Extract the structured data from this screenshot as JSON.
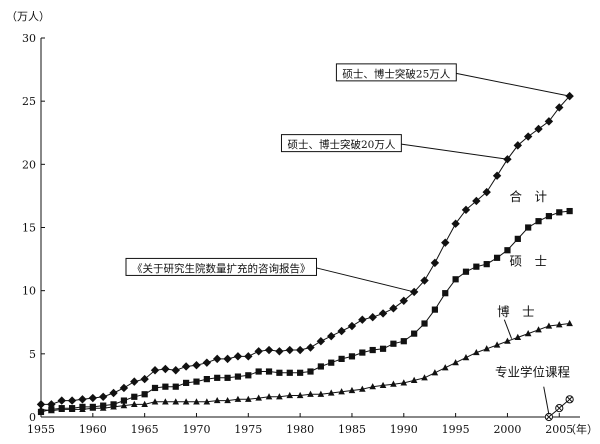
{
  "chart_data": {
    "type": "line",
    "ylabel": "（万人）",
    "xlabel": "（年）",
    "xlim": [
      1955,
      2007
    ],
    "ylim": [
      0,
      30
    ],
    "xticks": [
      1955,
      1960,
      1965,
      1970,
      1975,
      1980,
      1985,
      1990,
      1995,
      2000,
      2005
    ],
    "yticks": [
      0,
      5,
      10,
      15,
      20,
      25,
      30
    ],
    "x_tick_labels": [
      "1955",
      "1960",
      "1965",
      "1970",
      "1975",
      "1980",
      "1985",
      "1990",
      "1995",
      "2000",
      "2005"
    ],
    "y_tick_labels": [
      "0",
      "5",
      "10",
      "15",
      "20",
      "25",
      "30"
    ],
    "grid": false,
    "legend": "none",
    "series": [
      {
        "name": "合　计",
        "marker": "diamond",
        "x": [
          1955,
          1956,
          1957,
          1958,
          1959,
          1960,
          1961,
          1962,
          1963,
          1964,
          1965,
          1966,
          1967,
          1968,
          1969,
          1970,
          1971,
          1972,
          1973,
          1974,
          1975,
          1976,
          1977,
          1978,
          1979,
          1980,
          1981,
          1982,
          1983,
          1984,
          1985,
          1986,
          1987,
          1988,
          1989,
          1990,
          1991,
          1992,
          1993,
          1994,
          1995,
          1996,
          1997,
          1998,
          1999,
          2000,
          2001,
          2002,
          2003,
          2004,
          2005,
          2006
        ],
        "y": [
          1.0,
          1.0,
          1.3,
          1.3,
          1.4,
          1.5,
          1.6,
          1.9,
          2.3,
          2.8,
          3.0,
          3.7,
          3.8,
          3.7,
          4.0,
          4.1,
          4.3,
          4.6,
          4.6,
          4.8,
          4.8,
          5.2,
          5.3,
          5.2,
          5.3,
          5.3,
          5.5,
          6.0,
          6.4,
          6.8,
          7.2,
          7.7,
          7.9,
          8.2,
          8.6,
          9.2,
          9.9,
          10.8,
          12.2,
          13.8,
          15.3,
          16.4,
          17.1,
          17.8,
          19.1,
          20.4,
          21.5,
          22.2,
          22.8,
          23.4,
          24.5,
          25.4
        ]
      },
      {
        "name": "硕　士",
        "marker": "square",
        "x": [
          1955,
          1956,
          1957,
          1958,
          1959,
          1960,
          1961,
          1962,
          1963,
          1964,
          1965,
          1966,
          1967,
          1968,
          1969,
          1970,
          1971,
          1972,
          1973,
          1974,
          1975,
          1976,
          1977,
          1978,
          1979,
          1980,
          1981,
          1982,
          1983,
          1984,
          1985,
          1986,
          1987,
          1988,
          1989,
          1990,
          1991,
          1992,
          1993,
          1994,
          1995,
          1996,
          1997,
          1998,
          1999,
          2000,
          2001,
          2002,
          2003,
          2004,
          2005,
          2006
        ],
        "y": [
          0.4,
          0.6,
          0.7,
          0.7,
          0.8,
          0.8,
          0.9,
          1.0,
          1.3,
          1.6,
          1.8,
          2.3,
          2.4,
          2.4,
          2.7,
          2.8,
          3.0,
          3.1,
          3.1,
          3.2,
          3.3,
          3.6,
          3.6,
          3.5,
          3.5,
          3.5,
          3.6,
          4.0,
          4.3,
          4.6,
          4.8,
          5.1,
          5.3,
          5.4,
          5.8,
          6.0,
          6.6,
          7.4,
          8.5,
          9.8,
          10.9,
          11.5,
          11.9,
          12.1,
          12.6,
          13.2,
          14.1,
          15.0,
          15.5,
          15.9,
          16.2,
          16.3
        ]
      },
      {
        "name": "博　士",
        "marker": "triangle",
        "x": [
          1955,
          1956,
          1957,
          1958,
          1959,
          1960,
          1961,
          1962,
          1963,
          1964,
          1965,
          1966,
          1967,
          1968,
          1969,
          1970,
          1971,
          1972,
          1973,
          1974,
          1975,
          1976,
          1977,
          1978,
          1979,
          1980,
          1981,
          1982,
          1983,
          1984,
          1985,
          1986,
          1987,
          1988,
          1989,
          1990,
          1991,
          1992,
          1993,
          1994,
          1995,
          1996,
          1997,
          1998,
          1999,
          2000,
          2001,
          2002,
          2003,
          2004,
          2005,
          2006
        ],
        "y": [
          0.6,
          0.5,
          0.6,
          0.6,
          0.6,
          0.7,
          0.7,
          0.8,
          0.9,
          1.0,
          1.0,
          1.2,
          1.2,
          1.2,
          1.2,
          1.2,
          1.2,
          1.3,
          1.3,
          1.4,
          1.4,
          1.5,
          1.6,
          1.6,
          1.7,
          1.7,
          1.8,
          1.8,
          1.9,
          2.0,
          2.1,
          2.2,
          2.4,
          2.5,
          2.6,
          2.7,
          2.9,
          3.1,
          3.5,
          3.9,
          4.3,
          4.7,
          5.1,
          5.4,
          5.7,
          6.0,
          6.3,
          6.6,
          6.9,
          7.2,
          7.3,
          7.4
        ]
      },
      {
        "name": "专业学位课程",
        "marker": "circle-x",
        "x": [
          2004,
          2005,
          2006
        ],
        "y": [
          0.0,
          0.7,
          1.4
        ]
      }
    ],
    "series_labels": [
      {
        "text": "合　计",
        "x": 2000.2,
        "y": 17.1
      },
      {
        "text": "硕　士",
        "x": 2000.2,
        "y": 12.0
      },
      {
        "text": "博　士",
        "x": 1999.0,
        "y": 8.0
      },
      {
        "text": "专业学位课程",
        "x": 1998.8,
        "y": 3.2
      }
    ],
    "annotations": [
      {
        "text": "硕士、博士突破25万人",
        "box_x": 1983.5,
        "box_y": 27.2,
        "point_x": 2006,
        "point_y": 25.4
      },
      {
        "text": "硕士、博士突破20万人",
        "box_x": 1978.2,
        "box_y": 21.6,
        "point_x": 2000,
        "point_y": 20.4
      },
      {
        "text": "《关于研究生院数量扩充的咨询报告》",
        "box_x": 1963.2,
        "box_y": 11.8,
        "point_x": 1991,
        "point_y": 9.9
      }
    ]
  }
}
